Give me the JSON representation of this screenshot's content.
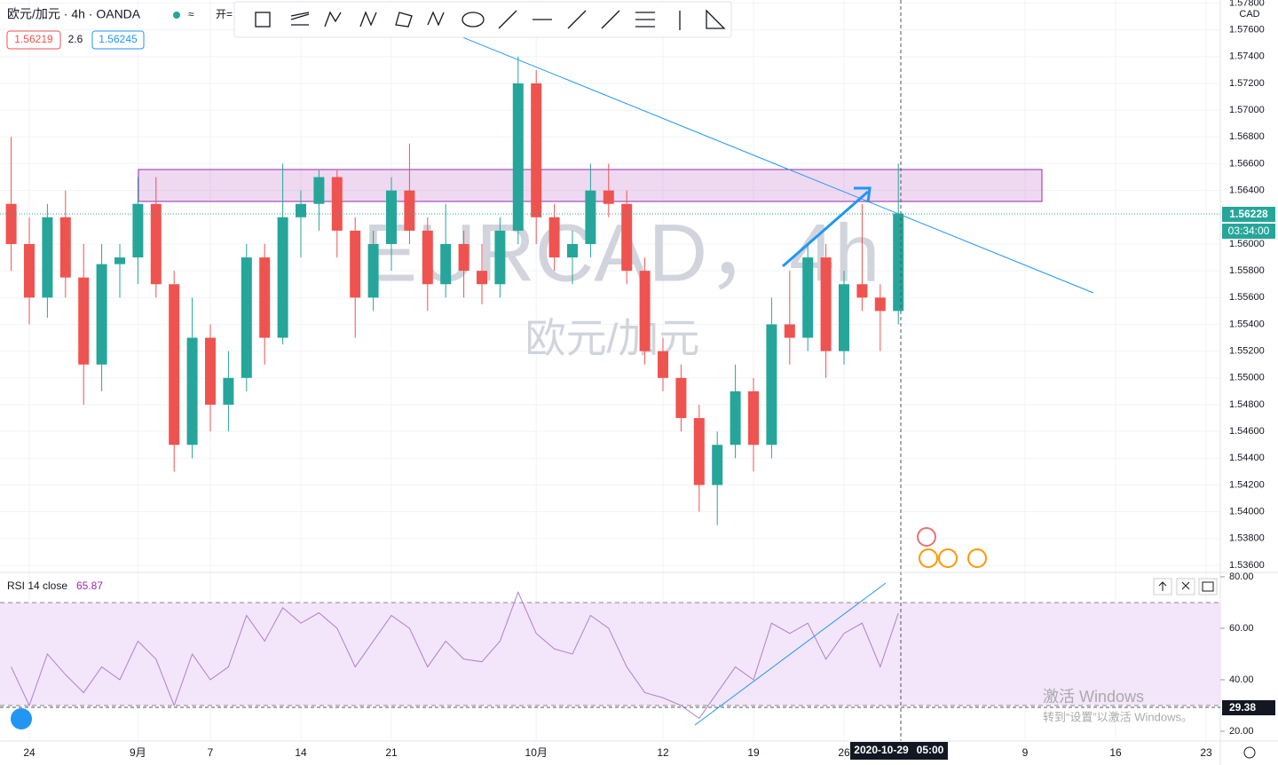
{
  "header": {
    "symbol": "欧元/加元 · 4h · OANDA",
    "sell": "1.56219",
    "spread": "2.6",
    "buy": "1.56245",
    "open_label": "开="
  },
  "watermark": {
    "line1": "EURCAD，4h",
    "line2": "欧元/加元"
  },
  "axis_currency": "CAD",
  "countdown": "03:34:00",
  "crosshair": {
    "rsi": "29.38",
    "date": "2020-10-29",
    "time": "05:00"
  },
  "windows": {
    "title": "激活 Windows",
    "hint": "转到“设置”以激活 Windows。"
  },
  "chart_data": [
    {
      "type": "candlestick",
      "up_color": "#26a69a",
      "down_color": "#ef5350",
      "grid": true,
      "x": [
        "2020-08-21",
        "2020-08-24",
        "2020-08-25",
        "2020-08-26",
        "2020-08-27",
        "2020-08-28",
        "2020-08-31",
        "2020-09-01",
        "2020-09-02",
        "2020-09-03",
        "2020-09-04",
        "2020-09-07",
        "2020-09-08",
        "2020-09-09",
        "2020-09-10",
        "2020-09-11",
        "2020-09-14",
        "2020-09-15",
        "2020-09-16",
        "2020-09-17",
        "2020-09-18",
        "2020-09-21",
        "2020-09-22",
        "2020-09-23",
        "2020-09-24",
        "2020-09-25",
        "2020-09-28",
        "2020-09-29",
        "2020-09-30",
        "2020-10-01",
        "2020-10-02",
        "2020-10-05",
        "2020-10-06",
        "2020-10-07",
        "2020-10-08",
        "2020-10-09",
        "2020-10-12",
        "2020-10-13",
        "2020-10-14",
        "2020-10-15",
        "2020-10-16",
        "2020-10-19",
        "2020-10-20",
        "2020-10-21",
        "2020-10-22",
        "2020-10-23",
        "2020-10-26",
        "2020-10-27",
        "2020-10-28",
        "2020-10-29"
      ],
      "open": [
        1.563,
        1.56,
        1.556,
        1.562,
        1.5575,
        1.551,
        1.5585,
        1.559,
        1.563,
        1.557,
        1.545,
        1.553,
        1.548,
        1.55,
        1.559,
        1.553,
        1.562,
        1.563,
        1.565,
        1.561,
        1.556,
        1.56,
        1.564,
        1.561,
        1.557,
        1.56,
        1.558,
        1.557,
        1.561,
        1.572,
        1.562,
        1.559,
        1.56,
        1.564,
        1.563,
        1.558,
        1.552,
        1.55,
        1.547,
        1.542,
        1.545,
        1.549,
        1.545,
        1.554,
        1.553,
        1.559,
        1.552,
        1.557,
        1.556,
        1.555
      ],
      "high": [
        1.568,
        1.562,
        1.563,
        1.564,
        1.56,
        1.56,
        1.56,
        1.565,
        1.565,
        1.558,
        1.556,
        1.554,
        1.552,
        1.56,
        1.56,
        1.566,
        1.564,
        1.5655,
        1.5655,
        1.562,
        1.561,
        1.565,
        1.5675,
        1.562,
        1.563,
        1.561,
        1.56,
        1.562,
        1.574,
        1.573,
        1.563,
        1.561,
        1.566,
        1.566,
        1.564,
        1.559,
        1.553,
        1.551,
        1.548,
        1.546,
        1.551,
        1.55,
        1.556,
        1.558,
        1.56,
        1.56,
        1.558,
        1.563,
        1.557,
        1.566
      ],
      "low": [
        1.558,
        1.554,
        1.5545,
        1.556,
        1.548,
        1.549,
        1.556,
        1.557,
        1.556,
        1.543,
        1.544,
        1.546,
        1.546,
        1.549,
        1.551,
        1.5525,
        1.559,
        1.561,
        1.559,
        1.553,
        1.555,
        1.558,
        1.56,
        1.555,
        1.556,
        1.556,
        1.5555,
        1.556,
        1.56,
        1.56,
        1.558,
        1.557,
        1.559,
        1.562,
        1.557,
        1.551,
        1.549,
        1.546,
        1.54,
        1.539,
        1.544,
        1.543,
        1.544,
        1.551,
        1.552,
        1.55,
        1.551,
        1.555,
        1.552,
        1.554
      ],
      "close": [
        1.56,
        1.556,
        1.562,
        1.5575,
        1.551,
        1.5585,
        1.559,
        1.563,
        1.557,
        1.545,
        1.553,
        1.548,
        1.55,
        1.559,
        1.553,
        1.562,
        1.563,
        1.565,
        1.561,
        1.556,
        1.56,
        1.564,
        1.561,
        1.557,
        1.56,
        1.558,
        1.557,
        1.561,
        1.572,
        1.562,
        1.559,
        1.56,
        1.564,
        1.563,
        1.558,
        1.552,
        1.55,
        1.547,
        1.542,
        1.545,
        1.549,
        1.545,
        1.554,
        1.553,
        1.559,
        1.552,
        1.557,
        1.556,
        1.555,
        1.56228
      ],
      "ylim": [
        1.53547,
        1.57823
      ],
      "yticks": [
        {
          "value": 1.536,
          "label": "1.53600"
        },
        {
          "value": 1.538,
          "label": "1.53800"
        },
        {
          "value": 1.54,
          "label": "1.54000"
        },
        {
          "value": 1.542,
          "label": "1.54200"
        },
        {
          "value": 1.544,
          "label": "1.54400"
        },
        {
          "value": 1.546,
          "label": "1.54600"
        },
        {
          "value": 1.548,
          "label": "1.54800"
        },
        {
          "value": 1.55,
          "label": "1.55000"
        },
        {
          "value": 1.552,
          "label": "1.55200"
        },
        {
          "value": 1.554,
          "label": "1.55400"
        },
        {
          "value": 1.556,
          "label": "1.55600"
        },
        {
          "value": 1.558,
          "label": "1.55800"
        },
        {
          "value": 1.56,
          "label": "1.56000"
        },
        {
          "value": 1.564,
          "label": "1.56400"
        },
        {
          "value": 1.566,
          "label": "1.56600"
        },
        {
          "value": 1.568,
          "label": "1.56800"
        },
        {
          "value": 1.57,
          "label": "1.57000"
        },
        {
          "value": 1.572,
          "label": "1.57200"
        },
        {
          "value": 1.574,
          "label": "1.57400"
        },
        {
          "value": 1.576,
          "label": "1.57600"
        },
        {
          "value": 1.578,
          "label": "1.57800"
        }
      ],
      "xticks": [
        {
          "value": "2020-08-24",
          "label": "24"
        },
        {
          "value": "2020-09-01",
          "label": "9月"
        },
        {
          "value": "2020-09-07",
          "label": "7"
        },
        {
          "value": "2020-09-14",
          "label": "14"
        },
        {
          "value": "2020-09-21",
          "label": "21"
        },
        {
          "value": "2020-10-01",
          "label": "10月"
        },
        {
          "value": "2020-10-12",
          "label": "12"
        },
        {
          "value": "2020-10-19",
          "label": "19"
        },
        {
          "value": "2020-10-26",
          "label": "26"
        },
        {
          "value": "2020-11-09",
          "label": "9"
        },
        {
          "value": "2020-11-16",
          "label": "16"
        },
        {
          "value": "2020-11-23",
          "label": "23"
        }
      ]
    },
    {
      "type": "line",
      "title": "RSI 14 close",
      "color": "#b07fcf",
      "band_color": "#f3e5fa",
      "values": [
        45,
        30,
        50,
        42,
        35,
        45,
        40,
        55,
        48,
        30,
        50,
        40,
        45,
        65,
        55,
        68,
        62,
        66,
        60,
        45,
        55,
        65,
        60,
        45,
        55,
        48,
        47,
        55,
        74,
        58,
        52,
        50,
        65,
        60,
        45,
        35,
        33,
        30,
        25,
        35,
        45,
        40,
        62,
        58,
        62,
        48,
        58,
        62,
        45,
        65.87
      ],
      "ylim": [
        16.2,
        81.7
      ],
      "levels": [
        30,
        70
      ],
      "yticks": [
        {
          "value": 20,
          "label": "20.00"
        },
        {
          "value": 40,
          "label": "40.00"
        },
        {
          "value": 60,
          "label": "60.00"
        },
        {
          "value": 80,
          "label": "80.00"
        }
      ]
    }
  ]
}
